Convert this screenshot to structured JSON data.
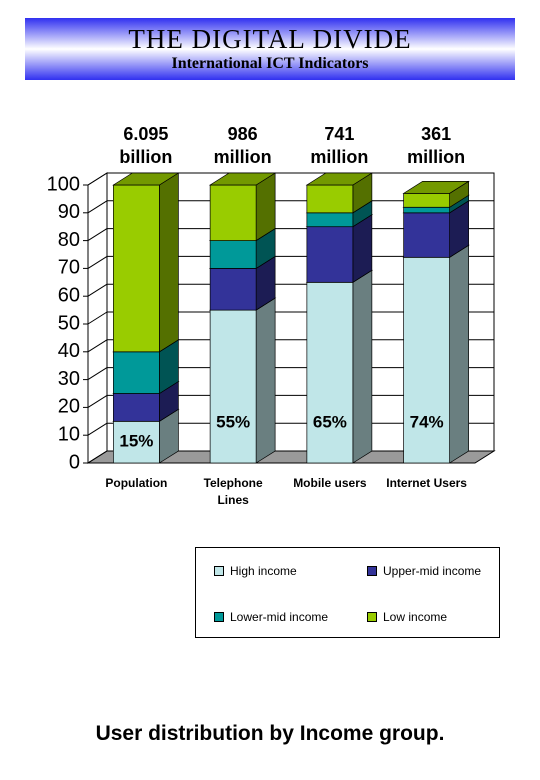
{
  "chart_data": {
    "type": "stacked_bar_3d",
    "title": "THE DIGITAL DIVIDE",
    "subtitle": "International ICT Indicators",
    "caption": "User distribution by Income group.",
    "categories": [
      "Population",
      "Telephone Lines",
      "Mobile users",
      "Internet Users"
    ],
    "bar_top_labels": [
      "6.095 billion",
      "986 million",
      "741 million",
      "361 million"
    ],
    "series": [
      {
        "name": "High income",
        "color": "#c0e6e8",
        "values": [
          15,
          55,
          65,
          74
        ],
        "value_labels": [
          "15%",
          "55%",
          "65%",
          "74%"
        ]
      },
      {
        "name": "Upper-mid income",
        "color": "#333399",
        "values": [
          10,
          15,
          20,
          16
        ]
      },
      {
        "name": "Lower-mid income",
        "color": "#009999",
        "values": [
          15,
          10,
          5,
          2
        ]
      },
      {
        "name": "Low income",
        "color": "#99cc00",
        "values": [
          60,
          20,
          10,
          5
        ]
      }
    ],
    "ylim": [
      0,
      100
    ],
    "yticks": [
      0,
      10,
      20,
      30,
      40,
      50,
      60,
      70,
      80,
      90,
      100
    ],
    "grid": true
  }
}
